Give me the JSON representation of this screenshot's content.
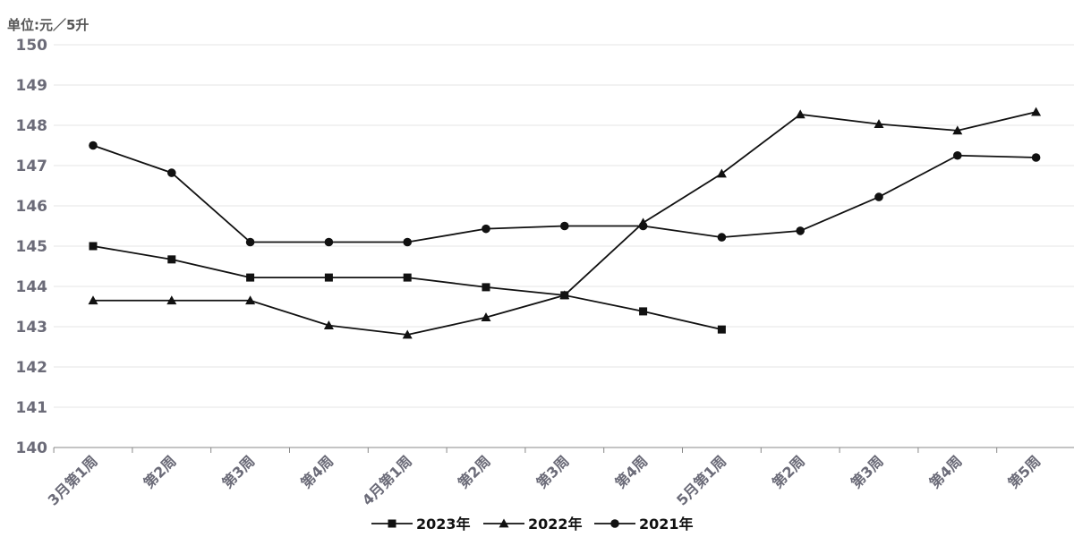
{
  "chart_data": {
    "type": "line",
    "unit_label": "单位:元／5升",
    "categories": [
      "3月第1周",
      "第2周",
      "第3周",
      "第4周",
      "4月第1周",
      "第2周",
      "第3周",
      "第4周",
      "5月第1周",
      "第2周",
      "第3周",
      "第4周",
      "第5周"
    ],
    "ylim": [
      140,
      150
    ],
    "yticks": [
      140,
      141,
      142,
      143,
      144,
      145,
      146,
      147,
      148,
      149,
      150
    ],
    "grid": true,
    "legend_position": "bottom",
    "series": [
      {
        "name": "2023年",
        "marker": "square",
        "color": "#111111",
        "values": [
          145.0,
          144.67,
          144.22,
          144.22,
          144.22,
          143.98,
          143.78,
          143.38,
          142.93,
          null,
          null,
          null,
          null
        ]
      },
      {
        "name": "2022年",
        "marker": "triangle",
        "color": "#111111",
        "values": [
          143.65,
          143.65,
          143.65,
          143.03,
          142.8,
          143.23,
          143.78,
          145.58,
          146.8,
          148.27,
          148.03,
          147.87,
          148.33
        ]
      },
      {
        "name": "2021年",
        "marker": "circle",
        "color": "#111111",
        "values": [
          147.5,
          146.82,
          145.1,
          145.1,
          145.1,
          145.43,
          145.5,
          145.5,
          145.22,
          145.38,
          146.22,
          147.25,
          147.2
        ]
      }
    ]
  }
}
